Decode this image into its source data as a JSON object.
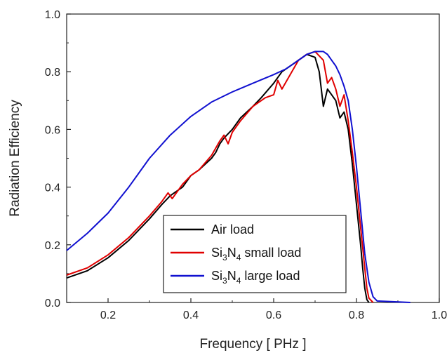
{
  "chart_data": {
    "type": "line",
    "title": "",
    "xlabel": "Frequency [ PHz ]",
    "ylabel": "Radiation Efficiency",
    "xlim": [
      0.1,
      1.0
    ],
    "ylim": [
      0.0,
      1.0
    ],
    "x_ticks": [
      0.2,
      0.4,
      0.6,
      0.8,
      1.0
    ],
    "x_tick_labels": [
      "0.2",
      "0.4",
      "0.6",
      "0.8",
      "1.0"
    ],
    "y_ticks": [
      0.0,
      0.2,
      0.4,
      0.6,
      0.8,
      1.0
    ],
    "y_tick_labels": [
      "0.0",
      "0.2",
      "0.4",
      "0.6",
      "0.8",
      "1.0"
    ],
    "grid": false,
    "legend_position": "bottom-right",
    "series": [
      {
        "name": "Air load",
        "legend_parts": [
          "Air load"
        ],
        "color": "#000000",
        "points": [
          [
            0.1,
            0.085
          ],
          [
            0.15,
            0.11
          ],
          [
            0.2,
            0.155
          ],
          [
            0.25,
            0.215
          ],
          [
            0.3,
            0.29
          ],
          [
            0.33,
            0.34
          ],
          [
            0.35,
            0.37
          ],
          [
            0.37,
            0.39
          ],
          [
            0.38,
            0.4
          ],
          [
            0.39,
            0.42
          ],
          [
            0.4,
            0.44
          ],
          [
            0.42,
            0.46
          ],
          [
            0.45,
            0.5
          ],
          [
            0.46,
            0.52
          ],
          [
            0.47,
            0.55
          ],
          [
            0.48,
            0.57
          ],
          [
            0.5,
            0.6
          ],
          [
            0.52,
            0.64
          ],
          [
            0.55,
            0.68
          ],
          [
            0.57,
            0.71
          ],
          [
            0.6,
            0.76
          ],
          [
            0.62,
            0.8
          ],
          [
            0.65,
            0.83
          ],
          [
            0.68,
            0.86
          ],
          [
            0.7,
            0.85
          ],
          [
            0.71,
            0.8
          ],
          [
            0.72,
            0.68
          ],
          [
            0.73,
            0.74
          ],
          [
            0.74,
            0.72
          ],
          [
            0.75,
            0.7
          ],
          [
            0.76,
            0.64
          ],
          [
            0.77,
            0.66
          ],
          [
            0.78,
            0.6
          ],
          [
            0.79,
            0.48
          ],
          [
            0.8,
            0.34
          ],
          [
            0.81,
            0.2
          ],
          [
            0.815,
            0.12
          ],
          [
            0.82,
            0.05
          ],
          [
            0.825,
            0.01
          ],
          [
            0.83,
            0.0
          ]
        ]
      },
      {
        "name": "Si3N4 small load",
        "legend_parts": [
          "Si",
          "3",
          "N",
          "4",
          " small load"
        ],
        "color": "#e00000",
        "points": [
          [
            0.1,
            0.095
          ],
          [
            0.15,
            0.12
          ],
          [
            0.2,
            0.165
          ],
          [
            0.25,
            0.225
          ],
          [
            0.3,
            0.3
          ],
          [
            0.33,
            0.35
          ],
          [
            0.345,
            0.38
          ],
          [
            0.355,
            0.36
          ],
          [
            0.37,
            0.39
          ],
          [
            0.38,
            0.41
          ],
          [
            0.4,
            0.44
          ],
          [
            0.42,
            0.46
          ],
          [
            0.45,
            0.51
          ],
          [
            0.47,
            0.56
          ],
          [
            0.48,
            0.58
          ],
          [
            0.49,
            0.55
          ],
          [
            0.5,
            0.59
          ],
          [
            0.52,
            0.63
          ],
          [
            0.55,
            0.68
          ],
          [
            0.58,
            0.71
          ],
          [
            0.6,
            0.72
          ],
          [
            0.61,
            0.77
          ],
          [
            0.62,
            0.74
          ],
          [
            0.64,
            0.79
          ],
          [
            0.66,
            0.84
          ],
          [
            0.68,
            0.86
          ],
          [
            0.7,
            0.87
          ],
          [
            0.72,
            0.84
          ],
          [
            0.73,
            0.76
          ],
          [
            0.74,
            0.78
          ],
          [
            0.75,
            0.74
          ],
          [
            0.76,
            0.68
          ],
          [
            0.77,
            0.72
          ],
          [
            0.78,
            0.63
          ],
          [
            0.79,
            0.52
          ],
          [
            0.8,
            0.4
          ],
          [
            0.81,
            0.26
          ],
          [
            0.82,
            0.12
          ],
          [
            0.825,
            0.05
          ],
          [
            0.83,
            0.015
          ],
          [
            0.84,
            0.0
          ]
        ]
      },
      {
        "name": "Si3N4 large load",
        "legend_parts": [
          "Si",
          "3",
          "N",
          "4",
          " large load"
        ],
        "color": "#1010d0",
        "points": [
          [
            0.1,
            0.18
          ],
          [
            0.15,
            0.24
          ],
          [
            0.2,
            0.31
          ],
          [
            0.25,
            0.4
          ],
          [
            0.3,
            0.5
          ],
          [
            0.35,
            0.58
          ],
          [
            0.4,
            0.645
          ],
          [
            0.45,
            0.695
          ],
          [
            0.5,
            0.73
          ],
          [
            0.55,
            0.76
          ],
          [
            0.6,
            0.79
          ],
          [
            0.63,
            0.81
          ],
          [
            0.65,
            0.83
          ],
          [
            0.68,
            0.86
          ],
          [
            0.7,
            0.87
          ],
          [
            0.72,
            0.87
          ],
          [
            0.73,
            0.86
          ],
          [
            0.74,
            0.84
          ],
          [
            0.75,
            0.82
          ],
          [
            0.76,
            0.79
          ],
          [
            0.77,
            0.75
          ],
          [
            0.78,
            0.7
          ],
          [
            0.79,
            0.6
          ],
          [
            0.8,
            0.47
          ],
          [
            0.81,
            0.32
          ],
          [
            0.82,
            0.17
          ],
          [
            0.83,
            0.07
          ],
          [
            0.84,
            0.02
          ],
          [
            0.85,
            0.005
          ],
          [
            0.93,
            0.0
          ]
        ]
      }
    ]
  }
}
